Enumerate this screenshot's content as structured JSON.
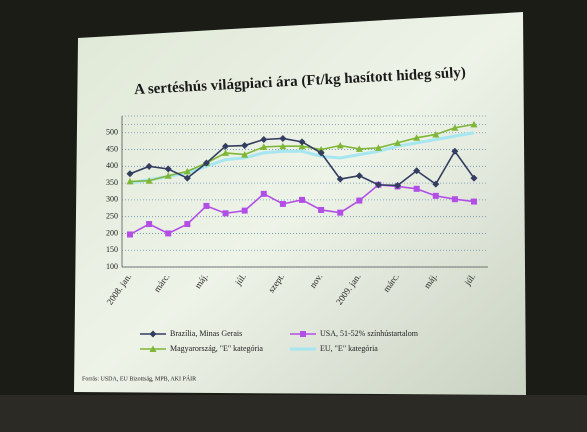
{
  "chart_data": {
    "type": "line",
    "title": "A sertéshús világpiaci ára (Ft/kg hasított hideg súly)",
    "categories": [
      "2008. jan.",
      null,
      "márc.",
      null,
      "máj.",
      null,
      "júl.",
      null,
      "szept.",
      null,
      "nov.",
      null,
      "2009. jan.",
      null,
      "márc.",
      null,
      "máj.",
      null,
      "júl."
    ],
    "series": [
      {
        "name": "Brazília, Minas Gerais",
        "color": "#333d60",
        "marker": "diamond",
        "values": [
          378,
          400,
          392,
          365,
          410,
          460,
          462,
          480,
          483,
          473,
          440,
          362,
          372,
          345,
          343,
          387,
          347,
          445,
          365
        ]
      },
      {
        "name": "USA, 51-52% színhústartalom",
        "color": "#b24ee6",
        "marker": "square",
        "values": [
          197,
          228,
          200,
          228,
          282,
          260,
          268,
          318,
          288,
          300,
          270,
          262,
          298,
          345,
          340,
          333,
          312,
          302,
          295
        ]
      },
      {
        "name": "Magyarország, \"E\" kategória",
        "color": "#7fb636",
        "marker": "triangle",
        "values": [
          355,
          357,
          372,
          385,
          410,
          440,
          435,
          458,
          460,
          460,
          450,
          462,
          452,
          455,
          470,
          485,
          495,
          515,
          525
        ]
      },
      {
        "name": "EU, \"E\" kategória",
        "color": "#a6e6f0",
        "marker": "none",
        "values": [
          350,
          360,
          370,
          380,
          400,
          420,
          425,
          440,
          445,
          445,
          430,
          425,
          435,
          445,
          460,
          470,
          480,
          490,
          500
        ]
      }
    ],
    "ylim": [
      100,
      550
    ],
    "yticks": [
      100,
      150,
      200,
      250,
      300,
      350,
      400,
      450,
      500
    ],
    "grid": true,
    "source": "Forrás: USDA, EU Bizottság, MPB, AKI PÁIR"
  }
}
